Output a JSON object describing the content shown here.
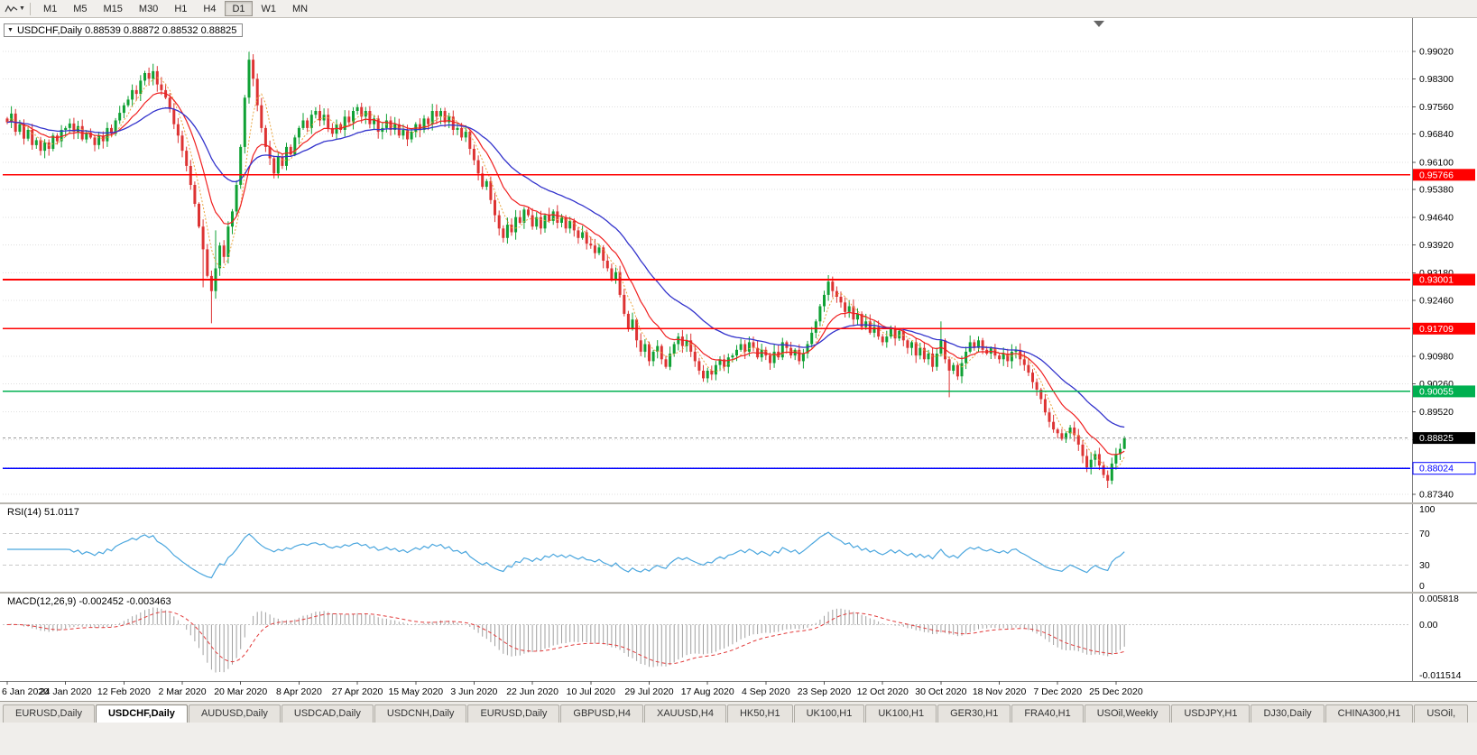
{
  "icons": {
    "collapse_triangle": "▼",
    "dropdown_caret": "▼"
  },
  "app": {
    "toolbar": {
      "timeframes": [
        "M1",
        "M5",
        "M15",
        "M30",
        "H1",
        "H4",
        "D1",
        "W1",
        "MN"
      ],
      "active_timeframe": "D1"
    },
    "tabs": [
      "EURUSD,Daily",
      "USDCHF,Daily",
      "AUDUSD,Daily",
      "USDCAD,Daily",
      "USDCNH,Daily",
      "EURUSD,Daily",
      "GBPUSD,H4",
      "XAUUSD,H4",
      "HK50,H1",
      "UK100,H1",
      "UK100,H1",
      "GER30,H1",
      "FRA40,H1",
      "USOil,Weekly",
      "USDJPY,H1",
      "DJ30,Daily",
      "CHINA300,H1",
      "USOil,"
    ],
    "active_tab_index": 1
  },
  "chart": {
    "symbol_info": "USDCHF,Daily 0.88539 0.88872 0.88532 0.88825",
    "rsi_label": "RSI(14) 51.0117",
    "macd_label": "MACD(12,26,9) -0.002452 -0.003463",
    "colors": {
      "up": "#0FA134",
      "down": "#DD3333",
      "ma_fast": "#E8A33D",
      "ma_mid": "#F02020",
      "ma_slow": "#3333CC",
      "rsi": "#4AA6DE",
      "rsi_level": "#C8C8C8",
      "macd_hist": "#A0A0A0",
      "macd_signal": "#E23B3B",
      "grid": "#DFDFDF",
      "axis": "#808080",
      "bid_line": "#999999",
      "bid_label_bg": "#000000"
    }
  },
  "chart_data": {
    "type": "candlestick",
    "title": "USDCHF,Daily",
    "symbol": "USDCHF",
    "timeframe": "Daily",
    "last_candle": {
      "open": 0.88539,
      "high": 0.88872,
      "low": 0.88532,
      "close": 0.88825
    },
    "x_labels": [
      "6 Jan 2020",
      "24 Jan 2020",
      "12 Feb 2020",
      "2 Mar 2020",
      "20 Mar 2020",
      "8 Apr 2020",
      "27 Apr 2020",
      "15 May 2020",
      "3 Jun 2020",
      "22 Jun 2020",
      "10 Jul 2020",
      "29 Jul 2020",
      "17 Aug 2020",
      "4 Sep 2020",
      "23 Sep 2020",
      "12 Oct 2020",
      "30 Oct 2020",
      "18 Nov 2020",
      "7 Dec 2020",
      "25 Dec 2020"
    ],
    "x_label_interval_bars": 14,
    "y_ticks": [
      "0.99020",
      "0.98300",
      "0.97560",
      "0.96840",
      "0.96100",
      "0.95380",
      "0.94640",
      "0.93920",
      "0.93180",
      "0.92460",
      "0.91720",
      "0.90980",
      "0.90260",
      "0.89520",
      "0.88780",
      "0.88040",
      "0.87340"
    ],
    "y_range": [
      0.8734,
      0.9902
    ],
    "closes": [
      0.9715,
      0.9738,
      0.969,
      0.971,
      0.9672,
      0.9695,
      0.9655,
      0.9668,
      0.964,
      0.9662,
      0.9645,
      0.968,
      0.9665,
      0.9695,
      0.97,
      0.9712,
      0.969,
      0.9705,
      0.967,
      0.9688,
      0.9675,
      0.9655,
      0.968,
      0.9665,
      0.97,
      0.9685,
      0.972,
      0.974,
      0.976,
      0.9775,
      0.98,
      0.979,
      0.9825,
      0.9845,
      0.983,
      0.985,
      0.9815,
      0.98,
      0.978,
      0.975,
      0.971,
      0.968,
      0.964,
      0.96,
      0.955,
      0.95,
      0.944,
      0.938,
      0.931,
      0.927,
      0.933,
      0.939,
      0.936,
      0.944,
      0.948,
      0.955,
      0.965,
      0.978,
      0.988,
      0.983,
      0.976,
      0.97,
      0.965,
      0.962,
      0.958,
      0.9625,
      0.96,
      0.965,
      0.963,
      0.9675,
      0.97,
      0.972,
      0.97,
      0.9735,
      0.9745,
      0.972,
      0.9735,
      0.97,
      0.9685,
      0.971,
      0.9695,
      0.973,
      0.9715,
      0.9745,
      0.9755,
      0.973,
      0.9745,
      0.971,
      0.9725,
      0.969,
      0.97,
      0.972,
      0.9695,
      0.971,
      0.968,
      0.9695,
      0.967,
      0.969,
      0.971,
      0.9695,
      0.9725,
      0.971,
      0.9745,
      0.973,
      0.9745,
      0.9715,
      0.973,
      0.9695,
      0.97,
      0.9675,
      0.969,
      0.9645,
      0.9615,
      0.958,
      0.9545,
      0.956,
      0.951,
      0.947,
      0.9435,
      0.941,
      0.9445,
      0.9425,
      0.9465,
      0.945,
      0.9485,
      0.947,
      0.944,
      0.9465,
      0.9435,
      0.947,
      0.9455,
      0.948,
      0.945,
      0.9465,
      0.9435,
      0.9455,
      0.943,
      0.941,
      0.9425,
      0.9395,
      0.939,
      0.937,
      0.9385,
      0.935,
      0.933,
      0.93,
      0.932,
      0.926,
      0.921,
      0.917,
      0.9195,
      0.914,
      0.911,
      0.913,
      0.9085,
      0.911,
      0.9125,
      0.909,
      0.907,
      0.9105,
      0.913,
      0.915,
      0.9125,
      0.914,
      0.911,
      0.9085,
      0.906,
      0.904,
      0.906,
      0.905,
      0.9075,
      0.909,
      0.907,
      0.9095,
      0.91,
      0.9115,
      0.913,
      0.911,
      0.9135,
      0.912,
      0.9095,
      0.9115,
      0.91,
      0.908,
      0.911,
      0.9095,
      0.9135,
      0.912,
      0.91,
      0.9115,
      0.9085,
      0.9105,
      0.913,
      0.916,
      0.919,
      0.923,
      0.926,
      0.9295,
      0.927,
      0.9255,
      0.924,
      0.9215,
      0.923,
      0.9195,
      0.921,
      0.9175,
      0.919,
      0.916,
      0.9175,
      0.915,
      0.9135,
      0.915,
      0.917,
      0.9145,
      0.9165,
      0.914,
      0.912,
      0.9135,
      0.91,
      0.912,
      0.909,
      0.9105,
      0.907,
      0.9105,
      0.914,
      0.909,
      0.906,
      0.9075,
      0.9045,
      0.908,
      0.911,
      0.9135,
      0.912,
      0.914,
      0.9115,
      0.9105,
      0.912,
      0.91,
      0.909,
      0.9105,
      0.9085,
      0.911,
      0.9115,
      0.909,
      0.9075,
      0.9055,
      0.903,
      0.901,
      0.8985,
      0.895,
      0.8925,
      0.8905,
      0.8895,
      0.888,
      0.8895,
      0.891,
      0.889,
      0.8865,
      0.8835,
      0.8805,
      0.8825,
      0.884,
      0.881,
      0.8785,
      0.877,
      0.8815,
      0.884,
      0.8854,
      0.88825
    ],
    "wick_overrides": [
      {
        "index": 47,
        "low": 0.928
      },
      {
        "index": 49,
        "low": 0.9185
      },
      {
        "index": 50,
        "high": 0.943
      },
      {
        "index": 58,
        "high": 0.9901
      },
      {
        "index": 197,
        "high": 0.931
      },
      {
        "index": 224,
        "high": 0.919
      },
      {
        "index": 226,
        "low": 0.899
      },
      {
        "index": 264,
        "low": 0.8757
      }
    ],
    "hlines": [
      {
        "price": 0.95766,
        "label": "0.95766",
        "color": "#FF0000",
        "label_style": "solid"
      },
      {
        "price": 0.93001,
        "label": "0.93001",
        "color": "#FF0000",
        "label_style": "solid"
      },
      {
        "price": 0.91709,
        "label": "0.91709",
        "color": "#FF0000",
        "label_style": "solid"
      },
      {
        "price": 0.90055,
        "label": "0.90055",
        "color": "#00B050",
        "label_style": "solid"
      },
      {
        "price": 0.88024,
        "label": "0.88024",
        "color": "#0000FF",
        "label_style": "outline"
      }
    ],
    "bid_line": {
      "price": 0.88825,
      "label": "0.88825"
    },
    "moving_averages": [
      {
        "name": "fast",
        "period": 5,
        "style": "dotted"
      },
      {
        "name": "mid",
        "period": 12,
        "style": "solid"
      },
      {
        "name": "slow",
        "period": 30,
        "style": "solid"
      }
    ],
    "rsi": {
      "period": 14,
      "value": "51.0117",
      "levels": [
        70,
        30
      ],
      "scale_labels": [
        "100",
        "70",
        "30",
        "0"
      ]
    },
    "macd": {
      "fast": 12,
      "slow": 26,
      "signal": 9,
      "values": [
        "-0.002452",
        "-0.003463"
      ],
      "scale_labels": [
        "0.005818",
        "0.00",
        "-0.011514"
      ],
      "scale_max": 0.005818,
      "scale_min": -0.011514
    }
  }
}
